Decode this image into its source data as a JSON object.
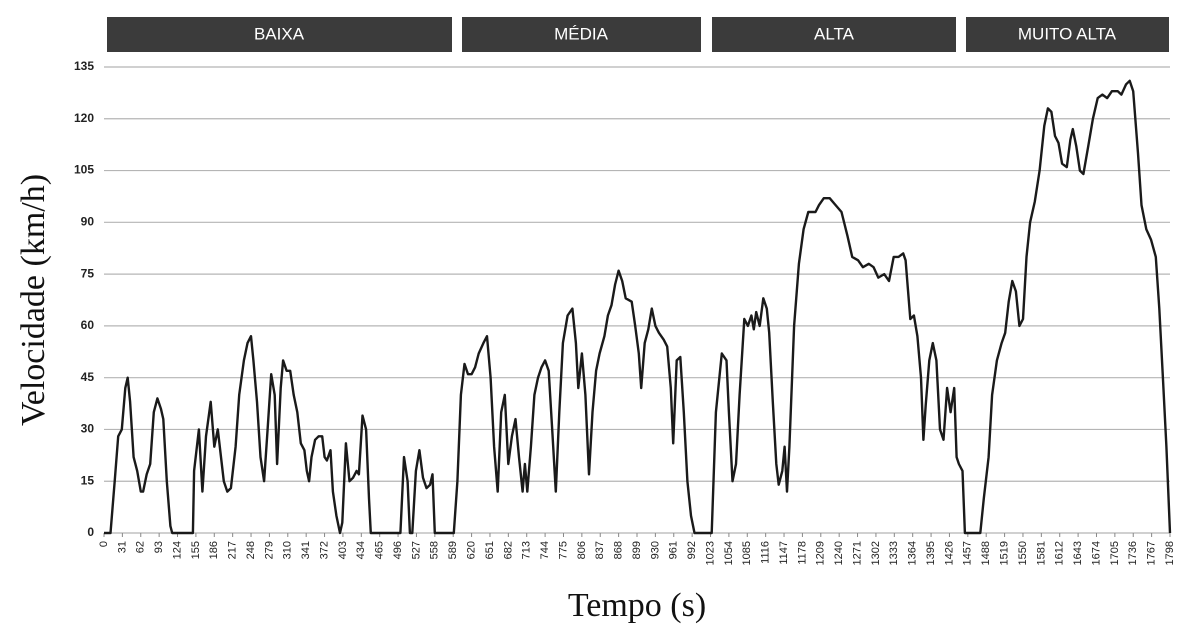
{
  "chart_data": {
    "type": "line",
    "phases": [
      "BAIXA",
      "MÉDIA",
      "ALTA",
      "MUITO ALTA"
    ],
    "xlabel": "Tempo (s)",
    "ylabel": "Velocidade (km/h)",
    "color": "#1a1a1a",
    "grid": true,
    "xlim": [
      0,
      1798
    ],
    "ylim": [
      0,
      135
    ],
    "yticks": [
      0,
      15,
      30,
      45,
      60,
      75,
      90,
      105,
      120,
      135
    ],
    "xticks": [
      0,
      31,
      62,
      93,
      124,
      155,
      186,
      217,
      248,
      279,
      310,
      341,
      372,
      403,
      434,
      465,
      496,
      527,
      558,
      589,
      620,
      651,
      682,
      713,
      744,
      775,
      806,
      837,
      868,
      899,
      930,
      961,
      992,
      1023,
      1054,
      1085,
      1116,
      1147,
      1178,
      1209,
      1240,
      1271,
      1302,
      1333,
      1364,
      1395,
      1426,
      1457,
      1488,
      1519,
      1550,
      1581,
      1612,
      1643,
      1674,
      1705,
      1736,
      1767,
      1798
    ],
    "x": [
      0,
      11,
      18,
      24,
      30,
      36,
      40,
      44,
      50,
      56,
      62,
      66,
      72,
      78,
      84,
      90,
      96,
      100,
      106,
      112,
      115,
      150,
      152,
      160,
      166,
      172,
      180,
      186,
      192,
      196,
      202,
      208,
      214,
      222,
      228,
      236,
      242,
      248,
      252,
      258,
      264,
      270,
      276,
      282,
      288,
      292,
      298,
      302,
      308,
      314,
      320,
      326,
      332,
      338,
      342,
      346,
      350,
      356,
      362,
      368,
      372,
      376,
      382,
      386,
      392,
      398,
      402,
      408,
      414,
      420,
      426,
      430,
      436,
      442,
      447,
      450,
      500,
      506,
      512,
      516,
      520,
      526,
      532,
      538,
      544,
      550,
      554,
      558,
      590,
      596,
      602,
      608,
      614,
      620,
      626,
      632,
      640,
      646,
      652,
      658,
      664,
      670,
      676,
      682,
      688,
      694,
      700,
      706,
      710,
      714,
      720,
      726,
      732,
      738,
      744,
      750,
      756,
      762,
      768,
      774,
      782,
      790,
      796,
      800,
      806,
      812,
      818,
      824,
      830,
      836,
      844,
      850,
      856,
      862,
      868,
      874,
      880,
      890,
      896,
      902,
      906,
      912,
      918,
      924,
      930,
      936,
      944,
      950,
      956,
      960,
      966,
      972,
      978,
      984,
      990,
      996,
      1025,
      1032,
      1042,
      1050,
      1054,
      1060,
      1066,
      1072,
      1080,
      1086,
      1092,
      1096,
      1100,
      1106,
      1112,
      1118,
      1122,
      1128,
      1134,
      1138,
      1144,
      1148,
      1152,
      1156,
      1164,
      1172,
      1180,
      1188,
      1200,
      1206,
      1214,
      1224,
      1234,
      1244,
      1254,
      1262,
      1272,
      1280,
      1290,
      1298,
      1306,
      1316,
      1324,
      1332,
      1340,
      1348,
      1352,
      1360,
      1366,
      1372,
      1378,
      1382,
      1386,
      1392,
      1398,
      1404,
      1410,
      1416,
      1422,
      1428,
      1434,
      1438,
      1442,
      1448,
      1452,
      1478,
      1484,
      1492,
      1498,
      1506,
      1514,
      1520,
      1526,
      1532,
      1538,
      1544,
      1550,
      1556,
      1562,
      1570,
      1578,
      1586,
      1592,
      1598,
      1604,
      1610,
      1616,
      1624,
      1630,
      1634,
      1640,
      1646,
      1652,
      1660,
      1668,
      1676,
      1684,
      1692,
      1700,
      1710,
      1716,
      1724,
      1730,
      1736,
      1744,
      1750,
      1758,
      1766,
      1774,
      1780,
      1786,
      1792,
      1798
    ],
    "values": [
      0,
      0,
      15,
      28,
      30,
      42,
      45,
      38,
      22,
      18,
      12,
      12,
      17,
      20,
      35,
      39,
      36,
      33,
      15,
      2,
      0,
      0,
      18,
      30,
      12,
      28,
      38,
      25,
      30,
      24,
      15,
      12,
      13,
      25,
      40,
      50,
      55,
      57,
      50,
      38,
      22,
      15,
      30,
      46,
      40,
      20,
      42,
      50,
      47,
      47,
      40,
      35,
      26,
      24,
      18,
      15,
      22,
      27,
      28,
      28,
      22,
      21,
      24,
      12,
      5,
      0,
      3,
      26,
      15,
      16,
      18,
      17,
      34,
      30,
      10,
      0,
      0,
      22,
      15,
      0,
      0,
      18,
      24,
      16,
      13,
      14,
      17,
      0,
      0,
      15,
      40,
      49,
      46,
      46,
      48,
      52,
      55,
      57,
      45,
      25,
      12,
      35,
      40,
      20,
      28,
      33,
      22,
      12,
      20,
      12,
      25,
      40,
      45,
      48,
      50,
      47,
      30,
      12,
      35,
      55,
      63,
      65,
      55,
      42,
      52,
      40,
      17,
      35,
      47,
      52,
      57,
      63,
      66,
      72,
      76,
      73,
      68,
      67,
      60,
      52,
      42,
      55,
      59,
      65,
      60,
      58,
      56,
      54,
      42,
      26,
      50,
      51,
      35,
      15,
      5,
      0,
      0,
      35,
      52,
      50,
      35,
      15,
      20,
      40,
      62,
      60,
      63,
      59,
      64,
      60,
      68,
      65,
      58,
      38,
      20,
      14,
      18,
      25,
      12,
      25,
      60,
      78,
      88,
      93,
      93,
      95,
      97,
      97,
      95,
      93,
      86,
      80,
      79,
      77,
      78,
      77,
      74,
      75,
      73,
      80,
      80,
      81,
      79,
      62,
      63,
      57,
      45,
      27,
      37,
      50,
      55,
      50,
      30,
      27,
      42,
      35,
      42,
      22,
      20,
      18,
      0,
      0,
      10,
      22,
      40,
      50,
      55,
      58,
      67,
      73,
      70,
      60,
      62,
      80,
      90,
      96,
      105,
      118,
      123,
      122,
      115,
      113,
      107,
      106,
      114,
      117,
      112,
      105,
      104,
      112,
      120,
      126,
      127,
      126,
      128,
      128,
      127,
      130,
      131,
      128,
      110,
      95,
      88,
      85,
      80,
      65,
      45,
      25,
      0
    ]
  }
}
